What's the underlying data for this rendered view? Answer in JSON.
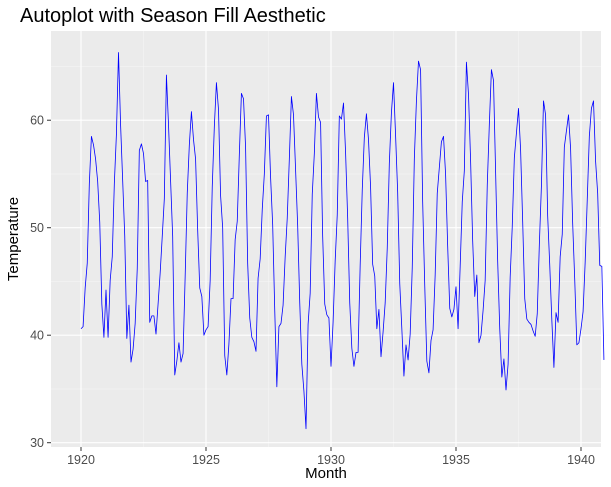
{
  "chart_data": {
    "type": "line",
    "title": "Autoplot with Season Fill Aesthetic",
    "xlabel": "Month",
    "ylabel": "Temperature",
    "xlim": [
      1918.8,
      1940.8
    ],
    "ylim": [
      29.6,
      68.3
    ],
    "xticks": [
      1920,
      1925,
      1930,
      1935,
      1940
    ],
    "xtick_labels": [
      "1920",
      "1925",
      "1930",
      "1935",
      "1940"
    ],
    "yticks": [
      30,
      40,
      50,
      60
    ],
    "ytick_labels": [
      "30",
      "40",
      "50",
      "60"
    ],
    "grid": true,
    "legend": "none",
    "colors": {
      "panel": "#ebebeb",
      "grid_major": "#ffffff",
      "grid_minor": "#f5f5f5",
      "line": "#0000ff",
      "tick": "#333333"
    },
    "series": [
      {
        "x_start": 1920.0,
        "x_step": 0.0833333,
        "values": [
          40.6,
          40.8,
          44.4,
          46.7,
          54.1,
          58.5,
          57.7,
          56.4,
          54.3,
          50.5,
          42.9,
          39.8,
          44.2,
          39.8,
          45.1,
          47.3,
          54.1,
          58.7,
          66.3,
          59.6,
          54.4,
          49.2,
          39.7,
          42.8,
          37.5,
          38.7,
          41.1,
          46.2,
          57.2,
          57.8,
          56.9,
          54.3,
          54.4,
          41.2,
          41.8,
          41.8,
          40.1,
          42.9,
          45.8,
          49.2,
          52.7,
          64.2,
          59.6,
          54.4,
          49.2,
          36.3,
          37.6,
          39.3,
          37.5,
          38.3,
          45.5,
          53.2,
          57.7,
          60.8,
          58.2,
          56.4,
          49.8,
          44.4,
          43.6,
          40.0,
          40.5,
          40.8,
          45.1,
          53.8,
          59.4,
          63.5,
          61.0,
          53.0,
          50.0,
          38.1,
          36.3,
          39.2,
          43.4,
          43.4,
          48.9,
          50.6,
          56.8,
          62.5,
          62.0,
          57.5,
          46.7,
          41.6,
          39.8,
          39.4,
          38.5,
          45.3,
          47.1,
          51.7,
          55.0,
          60.4,
          60.5,
          54.7,
          50.3,
          42.3,
          35.2,
          40.8,
          41.1,
          42.8,
          47.3,
          50.9,
          56.4,
          62.2,
          60.5,
          55.4,
          50.2,
          43.0,
          37.3,
          34.8,
          31.3,
          41.0,
          43.9,
          53.1,
          56.9,
          62.5,
          60.3,
          59.8,
          49.2,
          42.9,
          41.9,
          41.6,
          37.1,
          41.2,
          46.9,
          51.2,
          60.4,
          60.1,
          61.6,
          57.0,
          50.9,
          43.0,
          38.8,
          37.1,
          38.4,
          38.4,
          46.5,
          53.5,
          58.4,
          60.6,
          58.2,
          53.8,
          46.6,
          45.5,
          40.6,
          42.4,
          38.0,
          40.3,
          43.0,
          48.1,
          56.0,
          60.7,
          63.5,
          58.6,
          53.3,
          44.8,
          40.6,
          36.2,
          39.1,
          37.7,
          40.1,
          46.3,
          56.4,
          61.8,
          65.5,
          64.7,
          52.4,
          44.6,
          37.6,
          36.5,
          39.5,
          40.5,
          45.6,
          53.2,
          55.6,
          58.0,
          58.5,
          55.0,
          48.3,
          42.5,
          41.7,
          42.4,
          44.5,
          40.6,
          46.4,
          52.4,
          55.3,
          65.4,
          62.4,
          56.3,
          48.8,
          43.6,
          45.6,
          39.3,
          40.0,
          42.3,
          45.1,
          53.9,
          59.6,
          64.7,
          63.7,
          55.3,
          46.9,
          40.6,
          36.1,
          37.8,
          34.9,
          37.3,
          45.4,
          50.1,
          56.5,
          58.8,
          61.1,
          57.3,
          50.6,
          43.4,
          41.5,
          41.2,
          41.0,
          40.4,
          39.9,
          42.0,
          48.4,
          53.9,
          61.8,
          60.5,
          51.1,
          46.5,
          41.4,
          37.0,
          42.1,
          41.2,
          47.3,
          49.4,
          57.5,
          59.0,
          60.5,
          57.4,
          50.4,
          45.1,
          39.1,
          39.3,
          40.6,
          42.2,
          46.8,
          52.6,
          58.5,
          61.1,
          61.8,
          56.2,
          53.2,
          46.5,
          46.4,
          37.7
        ]
      }
    ]
  }
}
